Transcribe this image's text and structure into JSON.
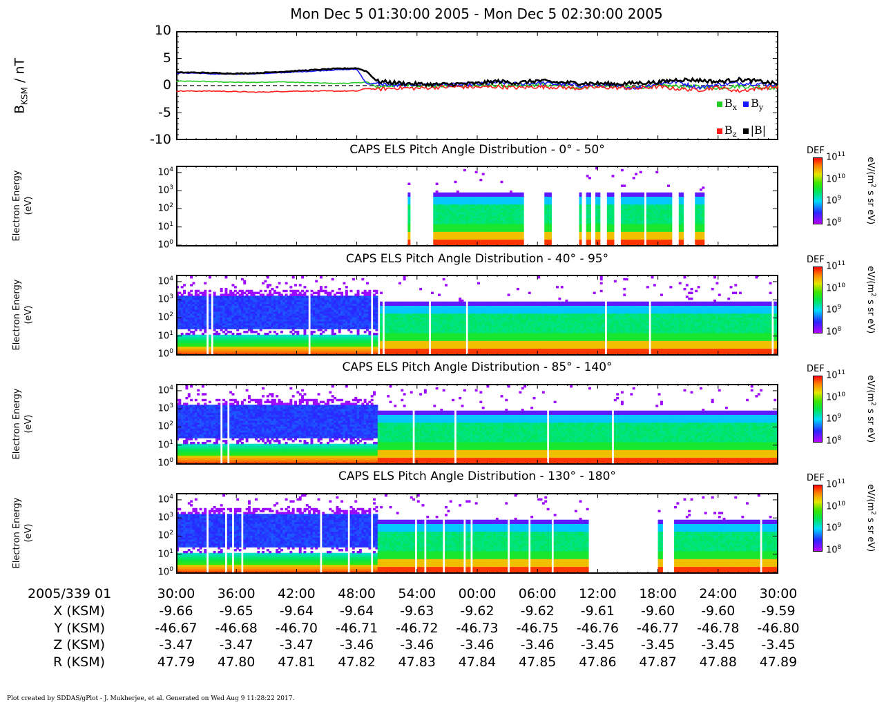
{
  "title": "Mon Dec  5 01:30:00 2005 - Mon Dec  5 02:30:00 2005",
  "mag_panel": {
    "ylabel_main": "B",
    "ylabel_sub": "KSM",
    "ylabel_unit": " / nT",
    "yticks": [
      "10",
      "5",
      "0",
      "-5",
      "-10"
    ],
    "legend": [
      {
        "label": "B",
        "sub": "x",
        "color": "#22cc22"
      },
      {
        "label": "B",
        "sub": "y",
        "color": "#1a1aff"
      },
      {
        "label": "B",
        "sub": "z",
        "color": "#ff1a1a"
      },
      {
        "label": "|B|",
        "sub": "",
        "color": "#000000"
      }
    ]
  },
  "spec_panels": [
    {
      "title": "CAPS ELS Pitch Angle Distribution - 0° - 50°"
    },
    {
      "title": "CAPS ELS Pitch Angle Distribution - 40° - 95°"
    },
    {
      "title": "CAPS ELS Pitch Angle Distribution - 85° - 140°"
    },
    {
      "title": "CAPS ELS Pitch Angle Distribution - 130° - 180°"
    }
  ],
  "spec_common": {
    "ylabel_line1": "Electron Energy",
    "ylabel_line2": "(eV)",
    "energy_ticks": [
      "4",
      "3",
      "2",
      "1",
      "0"
    ],
    "energy_base": "10",
    "cbar_label": "DEF",
    "cbar_ticks_exp": [
      "11",
      "10",
      "9",
      "8"
    ],
    "cbar_base": "10",
    "cbar_unit_pre": "eV/(m",
    "cbar_unit_sup": "2",
    "cbar_unit_post": " s sr eV)"
  },
  "time_axis": {
    "row_label": "2005/339 01",
    "labels": [
      "30:00",
      "36:00",
      "42:00",
      "48:00",
      "54:00",
      "00:00",
      "06:00",
      "12:00",
      "18:00",
      "24:00",
      "30:00"
    ]
  },
  "ephemeris": [
    {
      "label": "X (KSM)",
      "values": [
        "-9.66",
        "-9.65",
        "-9.64",
        "-9.64",
        "-9.63",
        "-9.62",
        "-9.62",
        "-9.61",
        "-9.60",
        "-9.60",
        "-9.59"
      ]
    },
    {
      "label": "Y (KSM)",
      "values": [
        "-46.67",
        "-46.68",
        "-46.70",
        "-46.71",
        "-46.72",
        "-46.73",
        "-46.75",
        "-46.76",
        "-46.77",
        "-46.78",
        "-46.80"
      ]
    },
    {
      "label": "Z (KSM)",
      "values": [
        "-3.47",
        "-3.47",
        "-3.47",
        "-3.46",
        "-3.46",
        "-3.46",
        "-3.46",
        "-3.45",
        "-3.45",
        "-3.45",
        "-3.45"
      ]
    },
    {
      "label": "R (KSM)",
      "values": [
        "47.79",
        "47.80",
        "47.81",
        "47.82",
        "47.83",
        "47.84",
        "47.85",
        "47.86",
        "47.87",
        "47.88",
        "47.89"
      ]
    }
  ],
  "footer": "Plot created by SDDAS/gPlot - J. Mukherjee, et al.  Generated on Wed Aug  9 11:28:22 2017.",
  "chart_data": [
    {
      "type": "line",
      "ylabel": "BKSM / nT",
      "ylim": [
        -10,
        10
      ],
      "xlim": [
        "01:30:00",
        "02:30:00"
      ],
      "x_minutes": [
        0,
        2,
        4,
        6,
        8,
        10,
        12,
        14,
        16,
        18,
        19,
        20,
        22,
        24,
        26,
        28,
        30,
        32,
        34,
        36,
        38,
        40,
        42,
        44,
        46,
        48,
        50,
        52,
        54,
        56,
        58,
        60
      ],
      "series": [
        {
          "name": "Bx",
          "values": [
            0.8,
            0.8,
            0.7,
            0.6,
            0.6,
            0.7,
            0.6,
            0.5,
            0.4,
            0.5,
            0.7,
            -0.3,
            0.2,
            0.1,
            0.0,
            -0.1,
            0.0,
            0.1,
            -0.2,
            0.2,
            0.1,
            -0.4,
            0.0,
            -0.2,
            -0.3,
            0.0,
            -0.1,
            -0.2,
            -0.4,
            -0.1,
            -0.3,
            -0.4
          ]
        },
        {
          "name": "By",
          "values": [
            2.3,
            2.3,
            2.1,
            2.1,
            2.2,
            2.3,
            2.5,
            2.7,
            2.9,
            3.0,
            0.3,
            0.4,
            0.0,
            0.3,
            0.2,
            0.1,
            0.2,
            0.6,
            0.3,
            0.5,
            0.3,
            0.0,
            0.1,
            -0.2,
            -0.4,
            0.4,
            0.7,
            -0.4,
            0.2,
            0.5,
            0.3,
            0.1
          ]
        },
        {
          "name": "Bz",
          "values": [
            -1.0,
            -1.0,
            -1.0,
            -1.1,
            -1.2,
            -1.1,
            -1.0,
            -1.0,
            -1.0,
            -1.0,
            -0.5,
            -0.7,
            -0.4,
            -0.5,
            -0.3,
            -0.2,
            -0.3,
            -0.2,
            -0.4,
            -0.2,
            -0.3,
            -0.5,
            -0.3,
            -0.4,
            -0.5,
            -0.2,
            -0.6,
            -0.8,
            -0.3,
            -1.0,
            -0.5,
            -0.2
          ]
        },
        {
          "name": "|B|",
          "values": [
            2.4,
            2.4,
            2.3,
            2.2,
            2.3,
            2.5,
            2.7,
            2.9,
            3.1,
            3.2,
            2.6,
            0.8,
            0.5,
            0.3,
            0.2,
            0.3,
            0.4,
            0.8,
            0.5,
            0.9,
            0.6,
            0.5,
            0.4,
            0.3,
            0.5,
            0.6,
            1.1,
            1.0,
            0.7,
            1.1,
            0.8,
            0.3
          ]
        }
      ]
    },
    {
      "type": "heatmap",
      "title": "CAPS ELS Pitch Angle Distribution - 0° - 50°",
      "ylabel": "Electron Energy (eV)",
      "ylim": [
        1,
        20000
      ],
      "zlabel": "DEF eV/(m2 s sr eV)",
      "zlim": [
        100000000.0,
        100000000000.0
      ],
      "data_windows_minutes": [
        [
          23.0,
          23.3
        ],
        [
          25.5,
          34.8
        ],
        [
          36.5,
          37.3
        ],
        [
          40.0,
          40.2
        ],
        [
          40.7,
          41.3
        ],
        [
          41.7,
          42.0
        ],
        [
          42.7,
          43.6
        ],
        [
          44.3,
          49.2
        ],
        [
          49.9,
          50.5
        ],
        [
          51.6,
          52.5
        ]
      ],
      "core_range_eV": [
        3,
        700
      ]
    },
    {
      "type": "heatmap",
      "title": "CAPS ELS Pitch Angle Distribution - 40° - 95°",
      "ylabel": "Electron Energy (eV)",
      "ylim": [
        1,
        20000
      ],
      "zlabel": "DEF eV/(m2 s sr eV)",
      "zlim": [
        100000000.0,
        100000000000.0
      ],
      "core_range_eV": [
        3,
        700
      ]
    },
    {
      "type": "heatmap",
      "title": "CAPS ELS Pitch Angle Distribution - 85° - 140°",
      "ylabel": "Electron Energy (eV)",
      "ylim": [
        1,
        20000
      ],
      "zlabel": "DEF eV/(m2 s sr eV)",
      "zlim": [
        100000000.0,
        100000000000.0
      ],
      "core_range_eV": [
        3,
        700
      ]
    },
    {
      "type": "heatmap",
      "title": "CAPS ELS Pitch Angle Distribution - 130° - 180°",
      "ylabel": "Electron Energy (eV)",
      "ylim": [
        1,
        20000
      ],
      "zlabel": "DEF eV/(m2 s sr eV)",
      "zlim": [
        100000000.0,
        100000000000.0
      ],
      "data_windows_minutes": [
        [
          0,
          41.0
        ],
        [
          48.0,
          48.3
        ],
        [
          49.5,
          60
        ]
      ],
      "core_range_eV": [
        3,
        700
      ]
    }
  ]
}
